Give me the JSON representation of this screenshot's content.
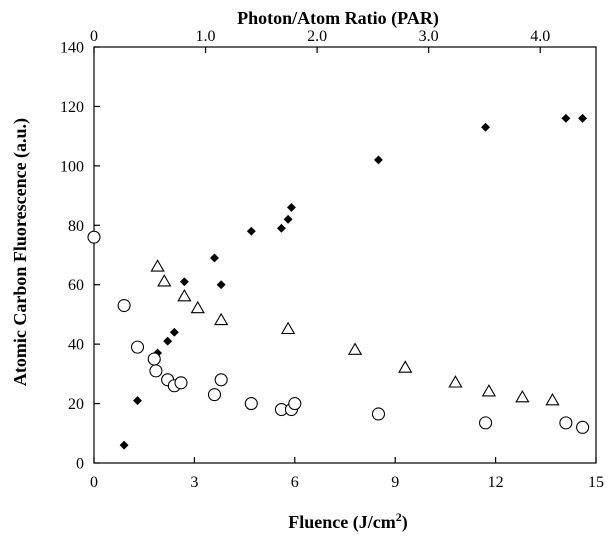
{
  "chart_data": {
    "type": "scatter",
    "title": "",
    "xlabel": "Fluence (J/cm",
    "xlabel_superscript": "2",
    "xlabel_close": ")",
    "ylabel": "Atomic Carbon Fluorescence (a.u.)",
    "x2label": "Photon/Atom Ratio (PAR)",
    "xlim": [
      0,
      15
    ],
    "ylim": [
      0,
      140
    ],
    "x2lim": [
      0,
      4.5
    ],
    "xticks": [
      "0",
      "3",
      "6",
      "9",
      "12",
      "15"
    ],
    "yticks": [
      "0",
      "20",
      "40",
      "60",
      "80",
      "100",
      "120",
      "140"
    ],
    "x2ticks": [
      "0",
      "1.0",
      "2.0",
      "3.0",
      "4.0"
    ],
    "grid": false,
    "legend": false,
    "series": [
      {
        "marker": "filled-diamond",
        "color": "#000000",
        "x": [
          0.9,
          1.3,
          1.9,
          2.2,
          2.4,
          2.7,
          3.6,
          3.8,
          4.7,
          5.6,
          5.8,
          5.9,
          8.5,
          11.7,
          14.1,
          14.6
        ],
        "y": [
          6,
          21,
          37,
          41,
          44,
          61,
          69,
          60,
          78,
          79,
          82,
          86,
          102,
          113,
          116,
          116
        ]
      },
      {
        "marker": "open-triangle",
        "color": "#000000",
        "x": [
          1.9,
          2.1,
          2.7,
          3.1,
          3.8,
          5.8,
          7.8,
          9.3,
          10.8,
          11.8,
          12.8,
          13.7
        ],
        "y": [
          66,
          61,
          56,
          52,
          48,
          45,
          38,
          32,
          27,
          24,
          22,
          21
        ]
      },
      {
        "marker": "open-circle",
        "color": "#000000",
        "x": [
          0.0,
          0.9,
          1.3,
          1.8,
          1.85,
          2.2,
          2.4,
          2.6,
          3.6,
          3.8,
          4.7,
          5.6,
          5.9,
          6.0,
          8.5,
          11.7,
          14.1,
          14.6
        ],
        "y": [
          76,
          53,
          39,
          35,
          31,
          28,
          26,
          27,
          23,
          28,
          20,
          18,
          18,
          20,
          16.5,
          13.5,
          13.5,
          12
        ]
      }
    ]
  }
}
